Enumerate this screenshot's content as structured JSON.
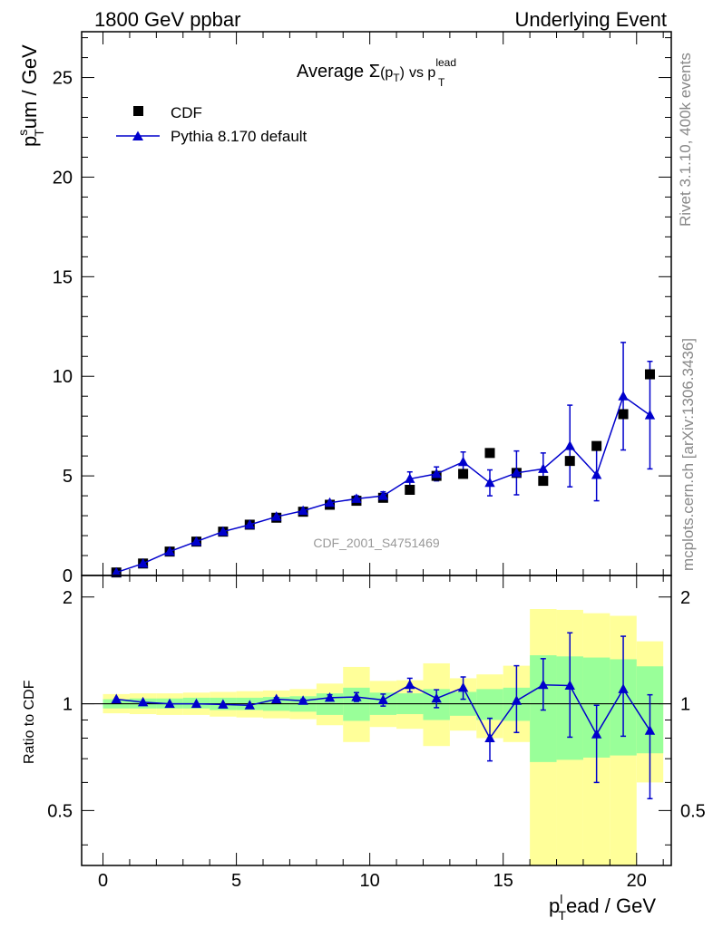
{
  "header": {
    "left": "1800 GeV ppbar",
    "right": "Underlying Event"
  },
  "side_labels": {
    "rivet": "Rivet 3.1.10,  400k events",
    "mcplots": "mcplots.cern.ch [arXiv:1306.3436]"
  },
  "analysis_id": "CDF_2001_S4751469",
  "colors": {
    "data": "#000000",
    "mc": "#0000cc",
    "band_inner": "#99ff99",
    "band_outer": "#ffff99"
  },
  "chart_data": [
    {
      "type": "scatter",
      "title": "Average Σ(p_T) vs p_T^lead",
      "title_parts": {
        "a": "Average ",
        "sigma": "Σ",
        "b": "(p",
        "sub1": "T",
        "c": ")",
        "vs": "vs p",
        "sup": "lead",
        "sub2": "T"
      },
      "ylabel": "p_T^sum / GeV",
      "ylabel_parts": {
        "p": "p",
        "sup": "s",
        "sub": "T",
        "rest": "um / GeV"
      },
      "xlim": [
        -0.8,
        21.3
      ],
      "ylim": [
        0,
        27.3
      ],
      "yticks": [
        0,
        5,
        10,
        15,
        20,
        25
      ],
      "legend": {
        "position": "top-left",
        "entries": [
          "CDF",
          "Pythia 8.170 default"
        ]
      },
      "x": [
        0.5,
        1.5,
        2.5,
        3.5,
        4.5,
        5.5,
        6.5,
        7.5,
        8.5,
        9.5,
        10.5,
        11.5,
        12.5,
        13.5,
        14.5,
        15.5,
        16.5,
        17.5,
        18.5,
        19.5,
        20.5
      ],
      "series": [
        {
          "name": "CDF",
          "marker": "square",
          "values": [
            0.15,
            0.6,
            1.2,
            1.7,
            2.2,
            2.55,
            2.9,
            3.2,
            3.55,
            3.75,
            3.9,
            4.3,
            5.0,
            5.1,
            6.15,
            5.15,
            4.75,
            5.75,
            6.5,
            8.1,
            10.1
          ]
        },
        {
          "name": "Pythia 8.170 default",
          "marker": "triangle",
          "values": [
            0.15,
            0.6,
            1.2,
            1.7,
            2.2,
            2.55,
            2.95,
            3.25,
            3.65,
            3.85,
            4.0,
            4.85,
            5.1,
            5.7,
            4.65,
            5.15,
            5.35,
            6.5,
            5.05,
            9.0,
            8.05
          ],
          "errors": [
            0,
            0,
            0,
            0,
            0,
            0,
            0.05,
            0.05,
            0.1,
            0.15,
            0.2,
            0.35,
            0.35,
            0.5,
            0.65,
            1.1,
            0.8,
            2.05,
            1.3,
            2.7,
            2.7
          ]
        }
      ]
    },
    {
      "type": "scatter",
      "title": "Ratio to CDF",
      "ylabel": "Ratio to CDF",
      "xlabel": "p_T^lead / GeV",
      "xlabel_parts": {
        "p": "p",
        "sup": "l",
        "sub": "T",
        "rest": "ead / GeV"
      },
      "xticks": [
        0,
        5,
        10,
        15,
        20
      ],
      "yticks": [
        0.5,
        1,
        2
      ],
      "ylim": [
        0.35,
        2.3
      ],
      "x": [
        0.5,
        1.5,
        2.5,
        3.5,
        4.5,
        5.5,
        6.5,
        7.5,
        8.5,
        9.5,
        10.5,
        11.5,
        12.5,
        13.5,
        14.5,
        15.5,
        16.5,
        17.5,
        18.5,
        19.5,
        20.5
      ],
      "ratio": [
        1.03,
        1.01,
        1.0,
        1.0,
        0.995,
        0.99,
        1.03,
        1.02,
        1.04,
        1.045,
        1.025,
        1.13,
        1.035,
        1.11,
        0.8,
        1.02,
        1.13,
        1.125,
        0.82,
        1.1,
        0.84
      ],
      "ratio_err_low": [
        0,
        0,
        0,
        0,
        0,
        0,
        0.01,
        0.01,
        0.02,
        0.03,
        0.04,
        0.05,
        0.06,
        0.08,
        0.11,
        0.19,
        0.17,
        0.32,
        0.22,
        0.29,
        0.3
      ],
      "ratio_err_high": [
        0,
        0,
        0,
        0,
        0,
        0,
        0.01,
        0.01,
        0.02,
        0.03,
        0.04,
        0.05,
        0.06,
        0.08,
        0.11,
        0.26,
        0.21,
        0.46,
        0.17,
        0.45,
        0.22
      ],
      "band_inner_low": [
        0.97,
        0.97,
        0.97,
        0.97,
        0.96,
        0.96,
        0.955,
        0.95,
        0.93,
        0.895,
        0.93,
        0.935,
        0.9,
        0.925,
        0.9,
        0.895,
        0.685,
        0.695,
        0.705,
        0.715,
        0.725
      ],
      "band_inner_high": [
        1.03,
        1.035,
        1.035,
        1.04,
        1.04,
        1.04,
        1.045,
        1.05,
        1.07,
        1.11,
        1.075,
        1.07,
        1.1,
        1.08,
        1.1,
        1.11,
        1.37,
        1.36,
        1.35,
        1.335,
        1.275
      ],
      "band_outer_low": [
        0.94,
        0.935,
        0.93,
        0.93,
        0.92,
        0.915,
        0.91,
        0.905,
        0.87,
        0.78,
        0.86,
        0.85,
        0.76,
        0.84,
        0.8,
        0.78,
        0.32,
        0.32,
        0.32,
        0.32,
        0.6
      ],
      "band_outer_high": [
        1.065,
        1.07,
        1.07,
        1.075,
        1.08,
        1.085,
        1.09,
        1.1,
        1.14,
        1.27,
        1.16,
        1.165,
        1.3,
        1.18,
        1.21,
        1.28,
        1.85,
        1.84,
        1.8,
        1.77,
        1.5
      ]
    }
  ]
}
